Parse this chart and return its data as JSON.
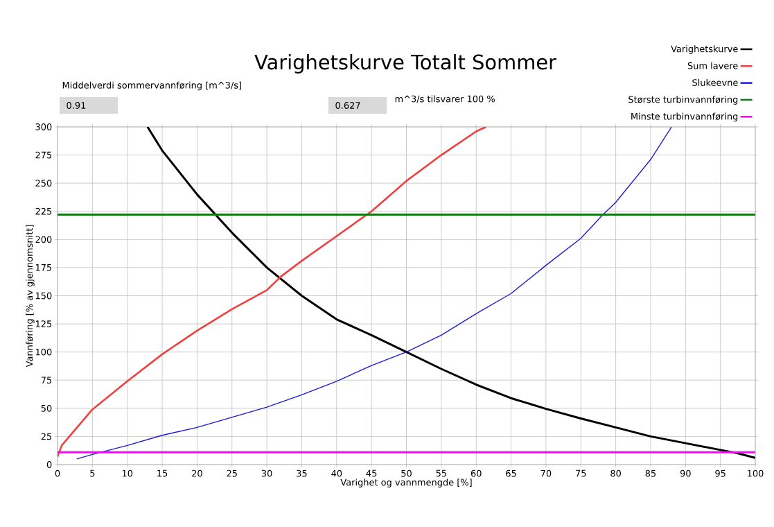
{
  "chart_data": {
    "type": "line",
    "title": "Varighetskurve Totalt Sommer",
    "xlabel": "Varighet og vannmengde [%]",
    "ylabel": "Vannføring [% av gjennomsnitt]",
    "annotations": [
      "Middelverdi sommervannføring [m^3/s]",
      "0.91",
      "0.627",
      "m^3/s tilsvarer 100 %"
    ],
    "xlim": [
      0,
      100
    ],
    "ylim": [
      0,
      300
    ],
    "xticks": [
      0,
      5,
      10,
      15,
      20,
      25,
      30,
      35,
      40,
      45,
      50,
      55,
      60,
      65,
      70,
      75,
      80,
      85,
      90,
      95,
      100
    ],
    "yticks": [
      0,
      25,
      50,
      75,
      100,
      125,
      150,
      175,
      200,
      225,
      250,
      275,
      300
    ],
    "grid": true,
    "legend": "top right",
    "marker": "none",
    "series": [
      {
        "name": "Varighetskurve",
        "color": "#000000",
        "x": [
          12.9,
          15,
          20,
          22.5,
          25,
          30,
          35,
          40,
          45,
          50,
          55,
          60,
          65,
          70,
          75,
          80,
          85,
          90,
          95,
          97.5,
          100
        ],
        "values": [
          300,
          279,
          240,
          223,
          206,
          175,
          150,
          129,
          115,
          100,
          85,
          71,
          59,
          49.5,
          41,
          33,
          25,
          19,
          13,
          10,
          6
        ]
      },
      {
        "name": "Sum lavere",
        "color": "#f04040",
        "x": [
          0,
          0.6,
          1.7,
          5,
          10,
          15,
          20,
          25,
          30,
          32,
          35,
          40,
          45,
          50,
          55,
          60,
          61.4
        ],
        "values": [
          7,
          17,
          25,
          49,
          74,
          98,
          119,
          138,
          155,
          167,
          181,
          203,
          225,
          252,
          275,
          296,
          300
        ]
      },
      {
        "name": "Slukeevne",
        "color": "#1a1adc",
        "line_style": "solid",
        "x": [
          2.75,
          5,
          10,
          15,
          20,
          25,
          30,
          35,
          40,
          45,
          50,
          55,
          60,
          65,
          70,
          75,
          78,
          80,
          85,
          88
        ],
        "values": [
          5,
          9,
          17,
          26,
          33,
          42,
          51,
          62,
          74,
          88,
          100,
          115,
          134,
          152,
          177,
          201,
          221,
          233,
          271,
          300
        ]
      },
      {
        "name": "Største turbinvannføring",
        "color": "#127812",
        "x": [
          0,
          100
        ],
        "values": [
          222,
          222
        ]
      },
      {
        "name": "Minste turbinvannføring",
        "color": "#ff00ff",
        "x": [
          0,
          100
        ],
        "values": [
          11,
          11
        ]
      }
    ]
  }
}
